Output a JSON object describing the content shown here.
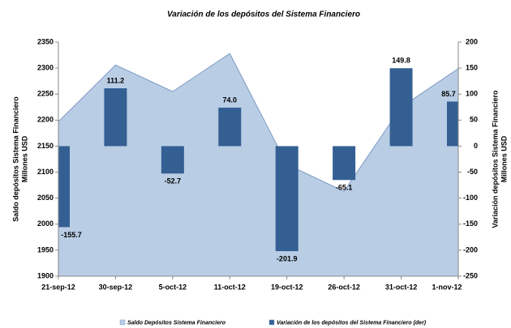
{
  "chart_data": {
    "type": "area-bar",
    "title": "Variación de los depósitos del Sistema Financiero",
    "ylabel": [
      "Saldo depósitos Sistema Financiero",
      "Millones USD"
    ],
    "y2label": [
      "Variación depósitos Sistema Financiero",
      "Millones USD"
    ],
    "categories": [
      "21-sep-12",
      "30-sep-12",
      "5-oct-12",
      "11-oct-12",
      "19-oct-12",
      "26-oct-12",
      "31-oct-12",
      "1-nov-12"
    ],
    "series": [
      {
        "name": "Saldo Depósitos Sistema Financiero",
        "type": "area",
        "color": "#b9cde5",
        "values": [
          2197,
          2306,
          2255,
          2328,
          2115,
          2063,
          2225,
          2299
        ]
      },
      {
        "name": "Variación de los depósitos del Sistema Financiero (der)",
        "type": "bar",
        "axis": "y2",
        "color": "#345f93",
        "values": [
          -155.7,
          111.2,
          -52.7,
          74.0,
          -201.9,
          -65.1,
          149.8,
          85.7
        ],
        "value_labels": [
          "-155.7",
          "111.2",
          "-52.7",
          "74.0",
          "-201.9",
          "-65.1",
          "149.8",
          "85.7"
        ]
      }
    ],
    "ylim": [
      1900,
      2350
    ],
    "yticks": [
      1900,
      1950,
      2000,
      2050,
      2100,
      2150,
      2200,
      2250,
      2300,
      2350
    ],
    "y2lim": [
      -250,
      200
    ],
    "y2ticks": [
      -250,
      -200,
      -150,
      -100,
      -50,
      0,
      50,
      100,
      150,
      200
    ]
  }
}
